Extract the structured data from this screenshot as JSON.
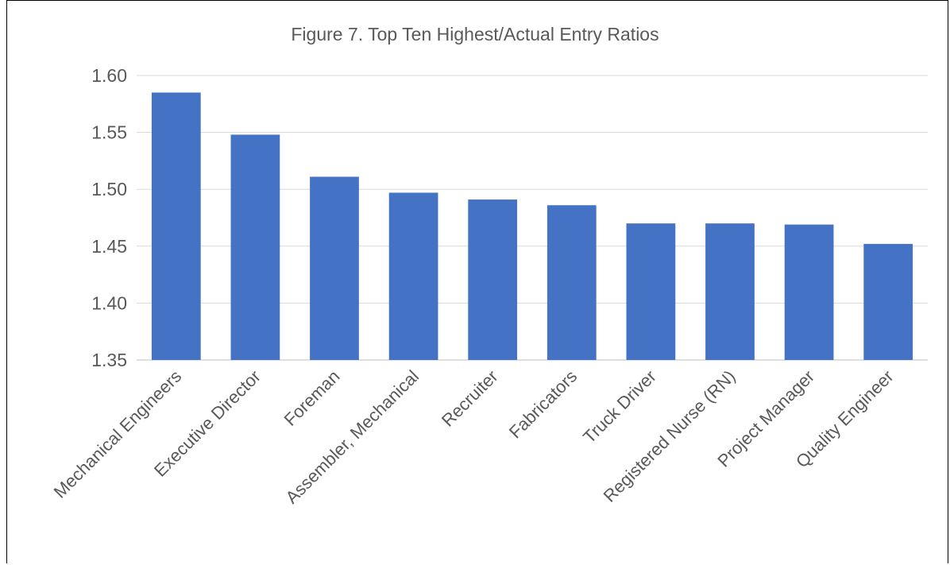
{
  "chart_data": {
    "type": "bar",
    "title": "Figure 7. Top Ten Highest/Actual Entry Ratios",
    "categories": [
      "Mechanical Engineers",
      "Executive Director",
      "Foreman",
      "Assembler, Mechanical",
      "Recruiter",
      "Fabricators",
      "Truck Driver",
      "Registered Nurse (RN)",
      "Project Manager",
      "Quality Engineer"
    ],
    "values": [
      1.585,
      1.548,
      1.511,
      1.497,
      1.491,
      1.486,
      1.47,
      1.47,
      1.469,
      1.452
    ],
    "ylim": [
      1.35,
      1.6
    ],
    "yticks": [
      "1.35",
      "1.40",
      "1.45",
      "1.50",
      "1.55",
      "1.60"
    ],
    "xlabel": "",
    "ylabel": "",
    "grid": true,
    "legend": "none",
    "bar_color": "#4472C4",
    "grid_color": "#d9d9d9"
  }
}
